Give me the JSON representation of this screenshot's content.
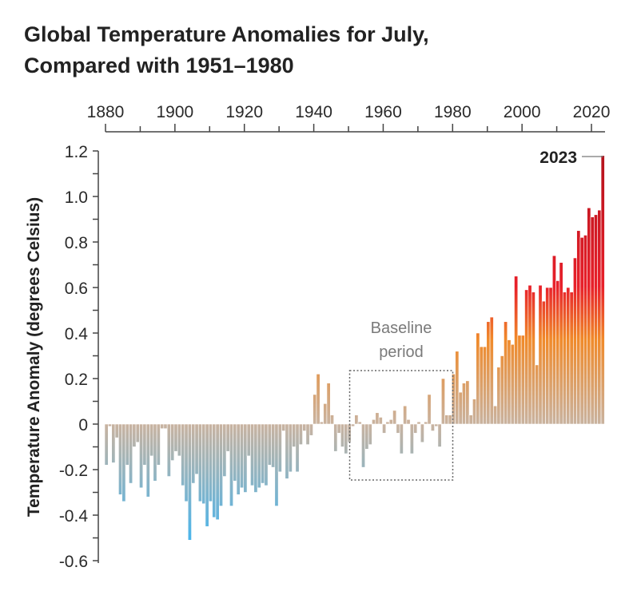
{
  "chart_data": {
    "type": "bar",
    "title_lines": [
      "Global Temperature Anomalies for July,",
      "Compared with 1951–1980"
    ],
    "xlabel": "",
    "ylabel": "Temperature Anomaly (degrees Celsius)",
    "x_start": 1880,
    "x_end": 2023,
    "xlim": [
      1880,
      2023
    ],
    "ylim": [
      -0.6,
      1.2
    ],
    "xticks": [
      "1880",
      "1900",
      "1920",
      "1940",
      "1960",
      "1980",
      "2000",
      "2020"
    ],
    "xtick_minor_step": 10,
    "xaxis_position": "top",
    "yticks": [
      "1.2",
      "1.0",
      "0.8",
      "0.6",
      "0.4",
      "0.2",
      "0",
      "-0.2",
      "-0.4",
      "-0.6"
    ],
    "ytick_minor_step": 0.1,
    "grid": false,
    "colors": {
      "hot": "#b3121c",
      "red": "#e8202a",
      "orange": "#f08a2a",
      "neutral": "#c9b3a0",
      "cold": "#4ab5ec"
    },
    "annotations": {
      "baseline_lines": [
        "Baseline",
        "period"
      ],
      "baseline_range": [
        1951,
        1980
      ],
      "last_year_label": "2023"
    },
    "values": [
      -0.18,
      -0.01,
      -0.17,
      -0.06,
      -0.31,
      -0.34,
      -0.18,
      -0.26,
      -0.1,
      -0.08,
      -0.28,
      -0.18,
      -0.32,
      -0.14,
      -0.25,
      -0.18,
      -0.02,
      -0.02,
      -0.23,
      -0.16,
      -0.12,
      -0.14,
      -0.27,
      -0.34,
      -0.51,
      -0.26,
      -0.22,
      -0.34,
      -0.35,
      -0.45,
      -0.34,
      -0.41,
      -0.42,
      -0.36,
      -0.23,
      -0.12,
      -0.36,
      -0.25,
      -0.31,
      -0.28,
      -0.3,
      -0.14,
      -0.27,
      -0.3,
      -0.28,
      -0.26,
      -0.27,
      -0.18,
      -0.19,
      -0.36,
      -0.21,
      -0.03,
      -0.24,
      -0.21,
      -0.1,
      -0.21,
      -0.09,
      -0.03,
      -0.09,
      -0.05,
      0.13,
      0.22,
      0.01,
      0.09,
      0.18,
      0.04,
      -0.12,
      -0.04,
      -0.1,
      -0.13,
      -0.08,
      -0.01,
      0.04,
      0.01,
      -0.19,
      -0.11,
      -0.09,
      0.02,
      0.05,
      0.03,
      -0.04,
      0.01,
      0.02,
      0.06,
      -0.04,
      -0.13,
      0.08,
      0.02,
      -0.13,
      -0.04,
      0.01,
      -0.08,
      0.01,
      0.13,
      -0.03,
      -0.01,
      -0.1,
      0.2,
      0.04,
      0.04,
      0.22,
      0.32,
      0.14,
      0.18,
      0.19,
      0.04,
      0.11,
      0.4,
      0.34,
      0.34,
      0.45,
      0.47,
      0.08,
      0.25,
      0.3,
      0.45,
      0.37,
      0.35,
      0.65,
      0.39,
      0.39,
      0.59,
      0.61,
      0.58,
      0.26,
      0.61,
      0.54,
      0.6,
      0.6,
      0.74,
      0.63,
      0.71,
      0.58,
      0.6,
      0.58,
      0.73,
      0.85,
      0.82,
      0.83,
      0.95,
      0.91,
      0.92,
      0.94,
      1.18
    ]
  }
}
